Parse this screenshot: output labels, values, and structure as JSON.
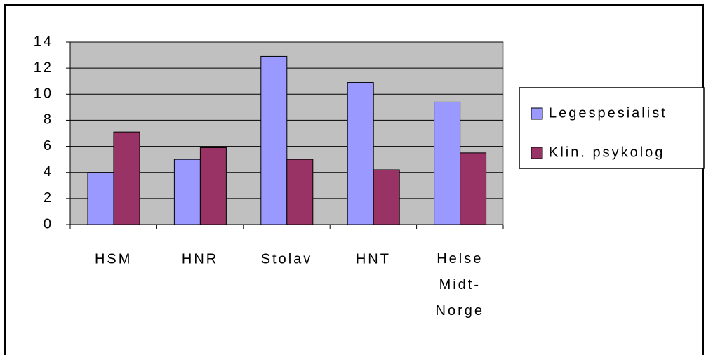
{
  "chart_data": {
    "type": "bar",
    "categories": [
      "HSM",
      "HNR",
      "Stolav",
      "HNT",
      "Helse Midt-Norge"
    ],
    "series": [
      {
        "name": "Legespesialist",
        "color": "#9999ff",
        "values": [
          4,
          5,
          12.9,
          10.9,
          9.4
        ]
      },
      {
        "name": "Klin. psykolog",
        "color": "#993366",
        "values": [
          7.1,
          5.9,
          5,
          4.2,
          5.5
        ]
      }
    ],
    "ylim": [
      0,
      14
    ],
    "yticks": [
      0,
      2,
      4,
      6,
      8,
      10,
      12,
      14
    ],
    "grid": true,
    "legend": "right"
  }
}
